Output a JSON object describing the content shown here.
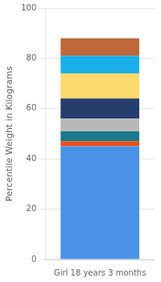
{
  "chart_data": {
    "type": "bar",
    "stacked": true,
    "categories": [
      "Girl 18 years 3 months"
    ],
    "series": [
      {
        "color": "#4a92e8",
        "values": [
          45
        ]
      },
      {
        "color": "#e84e1b",
        "values": [
          2
        ]
      },
      {
        "color": "#1a7a8a",
        "values": [
          4
        ]
      },
      {
        "color": "#b8b8b8",
        "values": [
          5
        ]
      },
      {
        "color": "#253e6e",
        "values": [
          8
        ]
      },
      {
        "color": "#fdd86a",
        "values": [
          10
        ]
      },
      {
        "color": "#1aafe8",
        "values": [
          7
        ]
      },
      {
        "color": "#c0673a",
        "values": [
          7
        ]
      }
    ],
    "ylabel": "Percentile Weight in Kilograms",
    "ylim": [
      0,
      100
    ],
    "yticks": [
      0,
      20,
      40,
      60,
      80,
      100
    ],
    "grid": true
  }
}
